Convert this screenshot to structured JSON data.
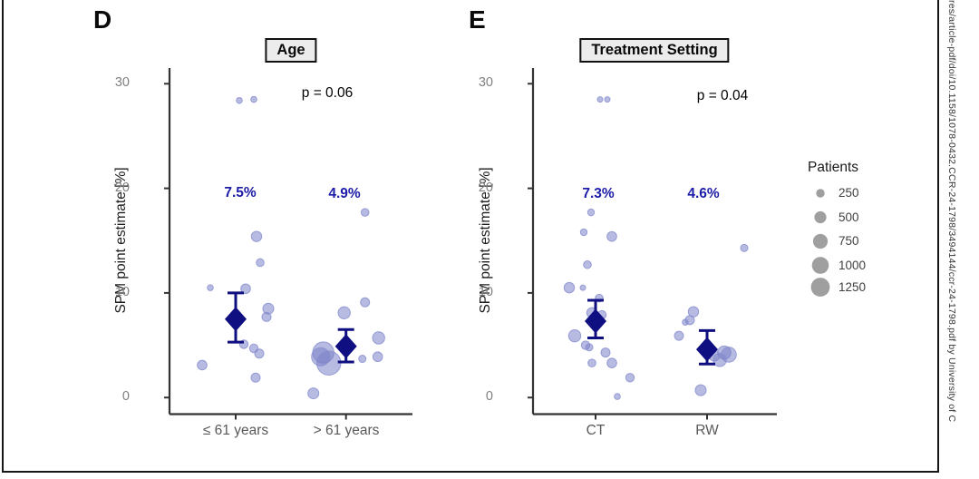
{
  "watermark": "res/article-pdf/doi/10.1158/1078-0432.CCR-24-1798/3494144/ccr-24-1798.pdf by University of C",
  "legend": {
    "title": "Patients",
    "sizes": [
      250,
      500,
      750,
      1000,
      1250
    ]
  },
  "colors": {
    "bubble_fill": "#7b82c9",
    "bubble_stroke": "#8a90d0",
    "diamond": "#0f0f82",
    "mean_label": "#1c1ca8",
    "axis_line": "#333333",
    "tick_label": "#808080",
    "title_box_bg": "#ececec",
    "legend_circle": "#9f9f9f"
  },
  "chart_data": [
    {
      "type": "scatter",
      "panel_label": "D",
      "title": "Age",
      "p_label": "p = 0.06",
      "ylabel": "SPM point estimate [%]",
      "ylim": [
        0,
        30
      ],
      "y_ticks": [
        0,
        10,
        20,
        30
      ],
      "grid": false,
      "bubble_size_unit": "patients",
      "categories": [
        "≤ 61 years",
        "> 61 years"
      ],
      "groups": [
        {
          "category": "≤ 61 years",
          "mean": 7.5,
          "mean_label": "7.5%",
          "ci": [
            5.3,
            10.0
          ],
          "points": [
            {
              "y": 28.4,
              "patients": 125,
              "dx": 4
            },
            {
              "y": 28.5,
              "patients": 125,
              "dx": 20
            },
            {
              "y": 15.4,
              "patients": 370,
              "dx": 23
            },
            {
              "y": 12.9,
              "patients": 210,
              "dx": 27
            },
            {
              "y": 10.5,
              "patients": 125,
              "dx": -28
            },
            {
              "y": 10.4,
              "patients": 320,
              "dx": 11
            },
            {
              "y": 8.5,
              "patients": 410,
              "dx": 36
            },
            {
              "y": 7.7,
              "patients": 290,
              "dx": 34
            },
            {
              "y": 5.1,
              "patients": 255,
              "dx": 9
            },
            {
              "y": 4.7,
              "patients": 255,
              "dx": 20
            },
            {
              "y": 4.2,
              "patients": 290,
              "dx": 26
            },
            {
              "y": 3.1,
              "patients": 320,
              "dx": -37
            },
            {
              "y": 1.9,
              "patients": 290,
              "dx": 22
            }
          ]
        },
        {
          "category": "> 61 years",
          "mean": 4.9,
          "mean_label": "4.9%",
          "ci": [
            3.4,
            6.5
          ],
          "points": [
            {
              "y": 17.7,
              "patients": 210,
              "dx": 21
            },
            {
              "y": 9.1,
              "patients": 290,
              "dx": 21
            },
            {
              "y": 8.1,
              "patients": 520,
              "dx": -2
            },
            {
              "y": 5.7,
              "patients": 520,
              "dx": 36
            },
            {
              "y": 4.3,
              "patients": 1570,
              "dx": -25
            },
            {
              "y": 3.9,
              "patients": 1150,
              "dx": -28
            },
            {
              "y": 3.3,
              "patients": 2030,
              "dx": -19
            },
            {
              "y": 3.7,
              "patients": 185,
              "dx": 18
            },
            {
              "y": 3.9,
              "patients": 320,
              "dx": 35
            },
            {
              "y": 0.4,
              "patients": 410,
              "dx": -36
            }
          ]
        }
      ]
    },
    {
      "type": "scatter",
      "panel_label": "E",
      "title": "Treatment Setting",
      "p_label": "p = 0.04",
      "ylabel": "SPM point estimate [%]",
      "ylim": [
        0,
        30
      ],
      "y_ticks": [
        0,
        10,
        20,
        30
      ],
      "grid": false,
      "bubble_size_unit": "patients",
      "categories": [
        "CT",
        "RW"
      ],
      "groups": [
        {
          "category": "CT",
          "mean": 7.3,
          "mean_label": "7.3%",
          "ci": [
            5.7,
            9.3
          ],
          "points": [
            {
              "y": 28.5,
              "patients": 105,
              "dx": 5
            },
            {
              "y": 28.5,
              "patients": 105,
              "dx": 13
            },
            {
              "y": 17.7,
              "patients": 155,
              "dx": -5
            },
            {
              "y": 15.8,
              "patients": 155,
              "dx": -13
            },
            {
              "y": 15.4,
              "patients": 320,
              "dx": 18
            },
            {
              "y": 12.7,
              "patients": 210,
              "dx": -9
            },
            {
              "y": 10.5,
              "patients": 370,
              "dx": -29
            },
            {
              "y": 10.5,
              "patients": 105,
              "dx": -14
            },
            {
              "y": 9.5,
              "patients": 210,
              "dx": 4
            },
            {
              "y": 8.1,
              "patients": 370,
              "dx": -4
            },
            {
              "y": 7.9,
              "patients": 255,
              "dx": 7
            },
            {
              "y": 5.9,
              "patients": 520,
              "dx": -23
            },
            {
              "y": 5.0,
              "patients": 255,
              "dx": -11
            },
            {
              "y": 4.8,
              "patients": 185,
              "dx": -7
            },
            {
              "y": 4.3,
              "patients": 290,
              "dx": 11
            },
            {
              "y": 3.3,
              "patients": 210,
              "dx": -4
            },
            {
              "y": 3.3,
              "patients": 320,
              "dx": 18
            },
            {
              "y": 1.9,
              "patients": 255,
              "dx": 38
            },
            {
              "y": 0.1,
              "patients": 125,
              "dx": 24
            }
          ]
        },
        {
          "category": "RW",
          "mean": 4.6,
          "mean_label": "4.6%",
          "ci": [
            3.2,
            6.4
          ],
          "points": [
            {
              "y": 14.3,
              "patients": 185,
              "dx": 41
            },
            {
              "y": 8.2,
              "patients": 370,
              "dx": -15
            },
            {
              "y": 7.4,
              "patients": 290,
              "dx": -19
            },
            {
              "y": 7.2,
              "patients": 125,
              "dx": -24
            },
            {
              "y": 5.9,
              "patients": 290,
              "dx": -31
            },
            {
              "y": 4.3,
              "patients": 615,
              "dx": 19
            },
            {
              "y": 4.1,
              "patients": 790,
              "dx": 24
            },
            {
              "y": 4.0,
              "patients": 415,
              "dx": 8
            },
            {
              "y": 3.6,
              "patients": 615,
              "dx": 14
            },
            {
              "y": 0.7,
              "patients": 415,
              "dx": -7
            }
          ]
        }
      ]
    }
  ]
}
